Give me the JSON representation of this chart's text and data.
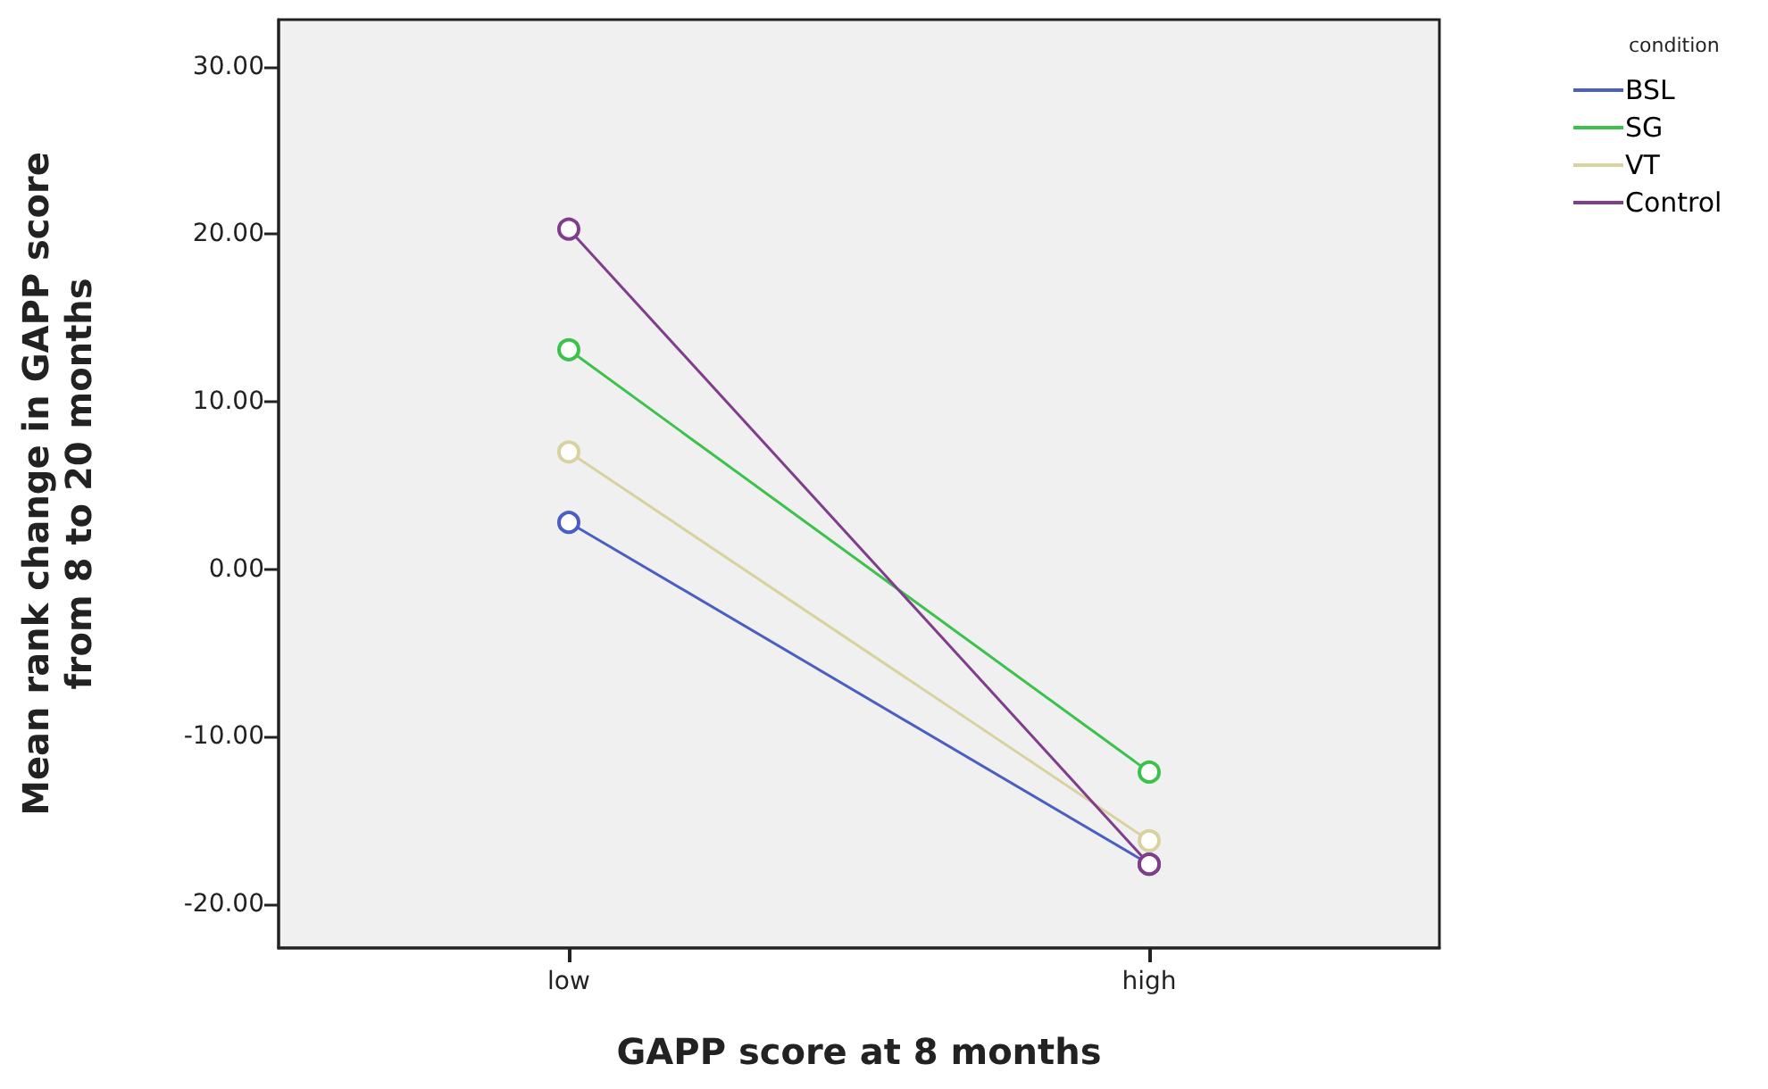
{
  "chart_data": {
    "type": "line",
    "xlabel": "GAPP score at 8 months",
    "ylabel": "Mean rank change in GAPP score\nfrom 8 to 20 months",
    "legend_title": "condition",
    "categories": [
      "low",
      "high"
    ],
    "series": [
      {
        "name": "BSL",
        "color": "#4a5fc1",
        "values": [
          2.8,
          -17.6
        ]
      },
      {
        "name": "SG",
        "color": "#3cc24a",
        "values": [
          13.1,
          -12.1
        ]
      },
      {
        "name": "VT",
        "color": "#d8d2a0",
        "values": [
          7.0,
          -16.2
        ]
      },
      {
        "name": "Control",
        "color": "#7f3d8c",
        "values": [
          20.3,
          -17.6
        ]
      }
    ],
    "ylim": [
      -22.6,
      32.8
    ],
    "yticks": [
      {
        "value": -20,
        "label": "-20.00"
      },
      {
        "value": -10,
        "label": "-10.00"
      },
      {
        "value": 0,
        "label": "0.00"
      },
      {
        "value": 10,
        "label": "10.00"
      },
      {
        "value": 20,
        "label": "20.00"
      },
      {
        "value": 30,
        "label": "30.00"
      }
    ],
    "marker": "circle",
    "line_style": "solid",
    "grid": false,
    "legend": "top right"
  }
}
